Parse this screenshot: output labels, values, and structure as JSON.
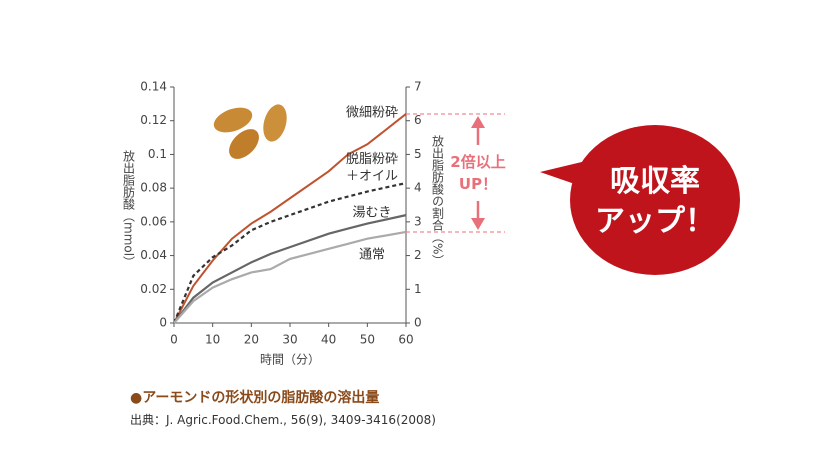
{
  "chart_data": {
    "type": "line",
    "x": [
      0,
      5,
      10,
      15,
      20,
      25,
      30,
      40,
      45,
      50,
      60
    ],
    "series": [
      {
        "name": "微細粉砕",
        "color": "#c0532f",
        "dash": false,
        "values": [
          0,
          0.022,
          0.037,
          0.05,
          0.059,
          0.066,
          0.074,
          0.09,
          0.1,
          0.106,
          0.124
        ]
      },
      {
        "name": "脱脂粉砕\n＋オイル",
        "color": "#333333",
        "dash": true,
        "values": [
          0,
          0.028,
          0.039,
          0.046,
          0.055,
          0.06,
          0.064,
          0.072,
          0.075,
          0.078,
          0.083
        ]
      },
      {
        "name": "湯むき",
        "color": "#666666",
        "dash": false,
        "values": [
          0,
          0.015,
          0.024,
          0.03,
          0.036,
          0.041,
          0.045,
          0.053,
          0.056,
          0.059,
          0.064
        ]
      },
      {
        "name": "通常",
        "color": "#aaaaaa",
        "dash": false,
        "values": [
          0,
          0.013,
          0.021,
          0.026,
          0.03,
          0.032,
          0.038,
          0.044,
          0.047,
          0.05,
          0.054
        ]
      }
    ],
    "xlim": [
      0,
      60
    ],
    "xticks": [
      0,
      10,
      20,
      30,
      40,
      50,
      60
    ],
    "ylim": [
      0,
      0.14
    ],
    "yticks": [
      0,
      0.02,
      0.04,
      0.06,
      0.08,
      0.1,
      0.12,
      0.14
    ],
    "y2lim": [
      0,
      7
    ],
    "y2ticks": [
      0,
      1,
      2,
      3,
      4,
      5,
      6,
      7
    ],
    "x_label": "時間（分）",
    "y_label": "放出脂肪酸（mmol）",
    "y2_label": "放出脂肪酸の割合（%）",
    "annotation": "2倍以上\nUP！",
    "callout": "吸収率\nアップ！",
    "caption": "●アーモンドの形状別の脂肪酸の溶出量",
    "source": "出典：J. Agric.Food.Chem., 56(9), 3409-3416(2008)"
  }
}
